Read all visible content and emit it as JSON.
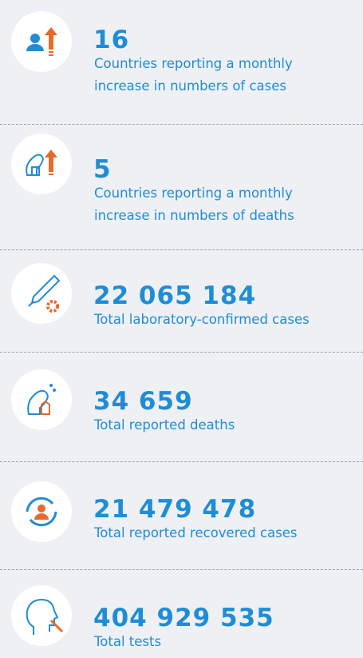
{
  "items": [
    {
      "number": "16",
      "label_lines": [
        "Countries reporting a monthly",
        "increase in numbers of cases"
      ]
    },
    {
      "number": "5",
      "label_lines": [
        "Countries reporting a monthly",
        "increase in numbers of deaths"
      ]
    },
    {
      "number": "22 065 184",
      "label_lines": [
        "Total laboratory-confirmed cases"
      ]
    },
    {
      "number": "34 659",
      "label_lines": [
        "Total reported deaths"
      ]
    },
    {
      "number": "21 479 478",
      "label_lines": [
        "Total reported recovered cases"
      ]
    },
    {
      "number": "404 929 535",
      "label_lines": [
        "Total tests"
      ]
    }
  ]
}
